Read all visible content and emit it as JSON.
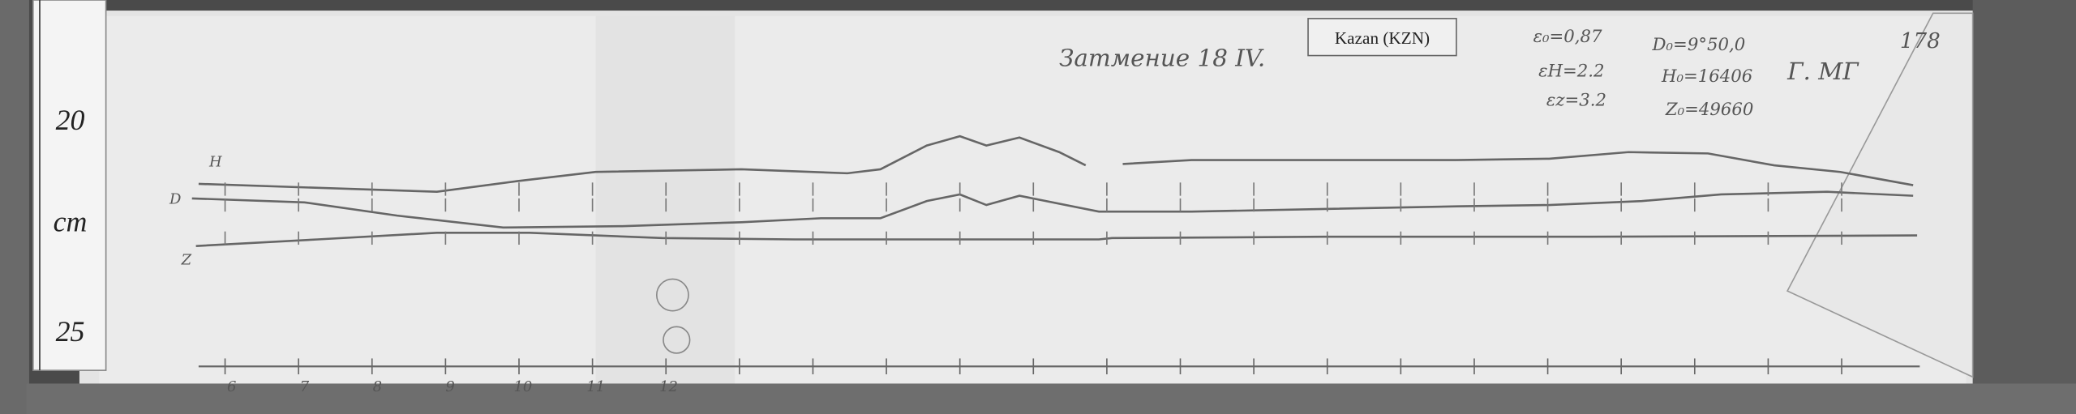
{
  "ruler": {
    "labels": [
      "20",
      "cm",
      "25"
    ]
  },
  "tag": "Kazan (KZN)",
  "header": {
    "title": "Затмение 18 IV.",
    "page": "178",
    "station": "Г. МГ"
  },
  "constants": [
    "ε₀=0,87",
    "εH=2.2",
    "εz=3.2",
    "D₀=9°50,0",
    "H₀=16406",
    "Z₀=49660"
  ],
  "traces": [
    "H",
    "D",
    "Z"
  ],
  "hours": [
    "6",
    "7",
    "8",
    "9",
    "10",
    "11",
    "12"
  ]
}
